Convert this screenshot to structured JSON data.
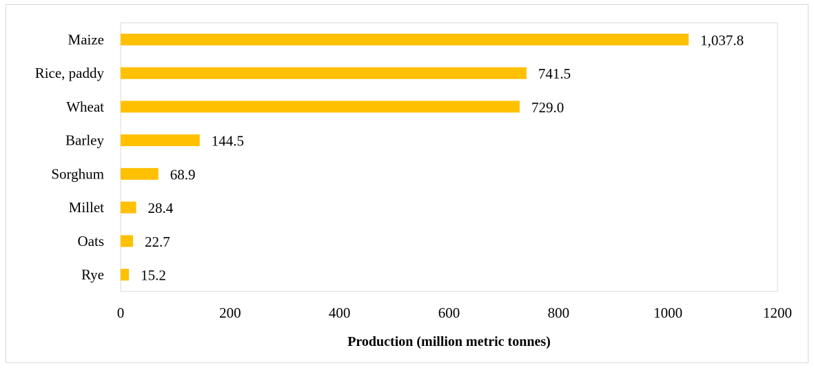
{
  "chart_data": {
    "type": "bar",
    "orientation": "horizontal",
    "categories": [
      "Maize",
      "Rice, paddy",
      "Wheat",
      "Barley",
      "Sorghum",
      "Millet",
      "Oats",
      "Rye"
    ],
    "values": [
      1037.8,
      741.5,
      729.0,
      144.5,
      68.9,
      28.4,
      22.7,
      15.2
    ],
    "data_labels": [
      "1,037.8",
      "741.5",
      "729.0",
      "144.5",
      "68.9",
      "28.4",
      "22.7",
      "15.2"
    ],
    "xlabel": "Production (million metric tonnes)",
    "ylabel": "",
    "xlim": [
      0,
      1200
    ],
    "xticks": [
      0,
      200,
      400,
      600,
      800,
      1000,
      1200
    ],
    "xtick_labels": [
      "0",
      "200",
      "400",
      "600",
      "800",
      "1000",
      "1200"
    ],
    "grid": false,
    "bar_color": "#FFC000",
    "axis_color": "#D9D9D9"
  }
}
